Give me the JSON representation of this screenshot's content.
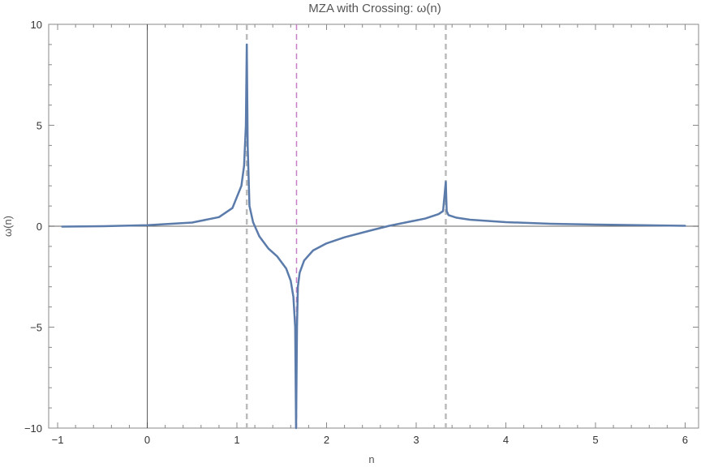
{
  "chart_data": {
    "type": "line",
    "title": "MZA with Crossing: ω(n)",
    "xlabel": "n",
    "ylabel": "ω(n)",
    "xlim": [
      -1.1,
      6.15
    ],
    "ylim": [
      -10,
      10
    ],
    "x_ticks": [
      -1,
      0,
      1,
      2,
      3,
      4,
      5,
      6
    ],
    "x_tick_labels": [
      "−1",
      "0",
      "1",
      "2",
      "3",
      "4",
      "5",
      "6"
    ],
    "y_ticks": [
      -10,
      -5,
      0,
      5,
      10
    ],
    "y_tick_labels": [
      "−10",
      "−5",
      "0",
      "5",
      "10"
    ],
    "grid": false,
    "frame": true,
    "series": [
      {
        "color": "#5b7bab",
        "x": [
          -0.95,
          -0.5,
          0,
          0.5,
          0.8,
          0.95,
          1.05,
          1.08,
          1.1,
          1.11,
          1.12,
          1.14,
          1.18,
          1.25,
          1.35,
          1.45,
          1.55,
          1.6,
          1.63,
          1.65,
          1.66,
          1.67,
          1.68,
          1.7,
          1.75,
          1.85,
          2.0,
          2.2,
          2.5,
          2.7,
          2.9,
          3.1,
          3.25,
          3.3,
          3.33,
          3.34,
          3.36,
          3.45,
          3.6,
          4.0,
          4.5,
          5.0,
          5.5,
          6.0
        ],
        "y": [
          -0.02,
          0.0,
          0.05,
          0.18,
          0.45,
          0.9,
          2.0,
          3.0,
          5.0,
          9.0,
          4.0,
          1.0,
          0.2,
          -0.5,
          -1.1,
          -1.5,
          -2.1,
          -2.7,
          -3.5,
          -5.0,
          -10.0,
          -5.0,
          -3.0,
          -2.3,
          -1.7,
          -1.2,
          -0.85,
          -0.55,
          -0.2,
          0.02,
          0.2,
          0.38,
          0.6,
          0.75,
          2.2,
          0.75,
          0.55,
          0.42,
          0.32,
          0.2,
          0.12,
          0.08,
          0.05,
          0.02
        ]
      }
    ],
    "vertical_lines": [
      {
        "x": 1.11,
        "color": "#bbbbbb",
        "style": "dashed"
      },
      {
        "x": 1.665,
        "color": "#c77fc7",
        "style": "dashed"
      },
      {
        "x": 3.33,
        "color": "#bbbbbb",
        "style": "dashed"
      }
    ]
  }
}
